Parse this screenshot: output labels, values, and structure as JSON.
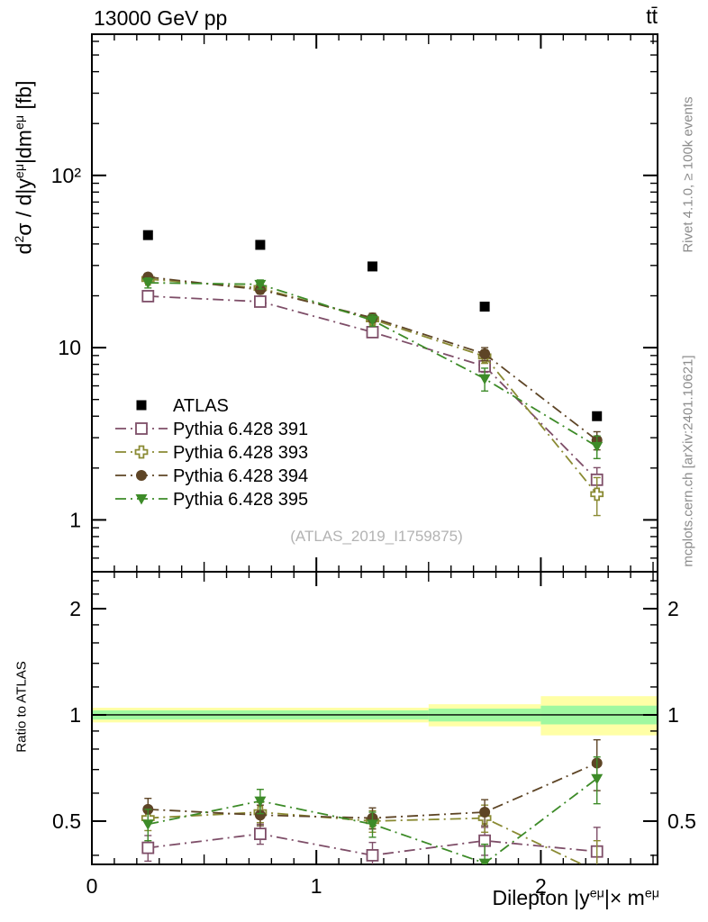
{
  "header": {
    "title_left": "13000 GeV pp",
    "title_right": "tt̄"
  },
  "margin_notes": {
    "rivet": "Rivet 4.1.0, ≥ 100k events",
    "mcplots": "mcplots.cern.ch [arXiv:2401.10621]"
  },
  "watermark": "(ATLAS_2019_I1759875)",
  "labels": {
    "ylabel_rich": [
      {
        "t": "d"
      },
      {
        "sup": "2"
      },
      {
        "t": "σ / d|y"
      },
      {
        "sup": "eμ"
      },
      {
        "t": "|dm"
      },
      {
        "sup": "eμ"
      },
      {
        "t": " [fb]"
      }
    ],
    "xlabel_rich": [
      {
        "t": "Dilepton |y"
      },
      {
        "sup": "eμ"
      },
      {
        "t": "|× m"
      },
      {
        "sup": "eμ"
      }
    ],
    "ratio_ylabel": "Ratio to ATLAS"
  },
  "colors": {
    "atlas": "#000000",
    "p391": "#7e4e68",
    "p393": "#8a8a33",
    "p394": "#5e4526",
    "p395": "#3d8b28",
    "band_yellow": "#ffffa6",
    "band_green": "#a0f8a0",
    "note_gray": "#8c8c8c",
    "watermark_gray": "#b3b3b3"
  },
  "chart_data": {
    "type": "line",
    "title": "13000 GeV pp",
    "process_label": "tt̄",
    "xlabel": "Dilepton |y^eμ| × m^eμ",
    "ylabel": "d²σ / d|y^eμ|dm^eμ [fb]",
    "ratio_ylabel": "Ratio to ATLAS",
    "legend_position": "left-middle",
    "x": [
      0.25,
      0.75,
      1.25,
      1.75,
      2.25
    ],
    "xlim": [
      0,
      2.52
    ],
    "xticks": [
      0,
      1,
      2
    ],
    "xtick_labels": [
      "0",
      "1",
      "2"
    ],
    "top": {
      "yscale": "log",
      "ylim": [
        0.5,
        660
      ],
      "ytick_values": [
        1,
        10,
        100
      ],
      "ytick_labels": [
        "1",
        "10",
        "10²"
      ]
    },
    "ratio": {
      "yscale": "log",
      "ylim": [
        0.377,
        2.545
      ],
      "ytick_values": [
        0.5,
        1,
        2
      ],
      "ytick_labels": [
        "0.5",
        "1",
        "2"
      ],
      "minor_ticks": [
        0.4,
        0.6,
        0.7,
        0.8,
        0.9,
        1.2,
        1.4,
        1.6,
        1.8,
        2.2,
        2.4
      ],
      "reference_line": 1,
      "bands": [
        {
          "x0": 0.0,
          "x1": 1.5,
          "yellow": [
            0.952,
            1.048
          ],
          "green": [
            0.97,
            1.03
          ]
        },
        {
          "x0": 1.5,
          "x1": 2.0,
          "yellow": [
            0.928,
            1.072
          ],
          "green": [
            0.958,
            1.042
          ]
        },
        {
          "x0": 2.0,
          "x1": 2.52,
          "yellow": [
            0.875,
            1.13
          ],
          "green": [
            0.94,
            1.062
          ]
        }
      ]
    },
    "series": [
      {
        "id": "atlas",
        "name": "ATLAS",
        "marker": "square",
        "color": "#000000",
        "line": "none",
        "values": [
          45,
          39.5,
          29.6,
          17.3,
          4.0
        ]
      },
      {
        "id": "p391",
        "name": "Pythia 6.428 391",
        "marker": "open-square",
        "color": "#7e4e68",
        "line": "dashdot",
        "values": [
          19.9,
          18.5,
          12.3,
          7.8,
          1.71
        ],
        "errors": [
          1.0,
          1.0,
          0.8,
          0.6,
          0.3
        ],
        "ratio": [
          0.42,
          0.46,
          0.4,
          0.44,
          0.41
        ],
        "ratio_errors": [
          0.035,
          0.03,
          0.035,
          0.04,
          0.07
        ]
      },
      {
        "id": "p393",
        "name": "Pythia 6.428 393",
        "marker": "open-cross",
        "color": "#8a8a33",
        "line": "dashdot",
        "values": [
          25.0,
          22.2,
          14.6,
          8.9,
          1.41
        ],
        "errors": [
          1.3,
          1.1,
          0.9,
          0.8,
          0.35
        ],
        "ratio": [
          0.51,
          0.53,
          0.5,
          0.51,
          0.36
        ],
        "ratio_errors": [
          0.04,
          0.035,
          0.035,
          0.045,
          0.08
        ]
      },
      {
        "id": "p394",
        "name": "Pythia 6.428 394",
        "marker": "circle",
        "color": "#5e4526",
        "line": "dashdot",
        "values": [
          25.7,
          21.7,
          14.9,
          9.2,
          2.9
        ],
        "errors": [
          1.3,
          1.1,
          0.9,
          0.8,
          0.35
        ],
        "ratio": [
          0.54,
          0.52,
          0.51,
          0.53,
          0.73
        ],
        "ratio_errors": [
          0.04,
          0.035,
          0.035,
          0.045,
          0.12
        ]
      },
      {
        "id": "p395",
        "name": "Pythia 6.428 395",
        "marker": "triangle-down",
        "color": "#3d8b28",
        "line": "dashdot",
        "values": [
          23.8,
          23.3,
          14.4,
          6.6,
          2.67
        ],
        "errors": [
          1.6,
          1.4,
          1.1,
          1.0,
          0.4
        ],
        "ratio": [
          0.49,
          0.57,
          0.49,
          0.38,
          0.66
        ],
        "ratio_errors": [
          0.05,
          0.045,
          0.04,
          0.05,
          0.1
        ]
      }
    ]
  }
}
